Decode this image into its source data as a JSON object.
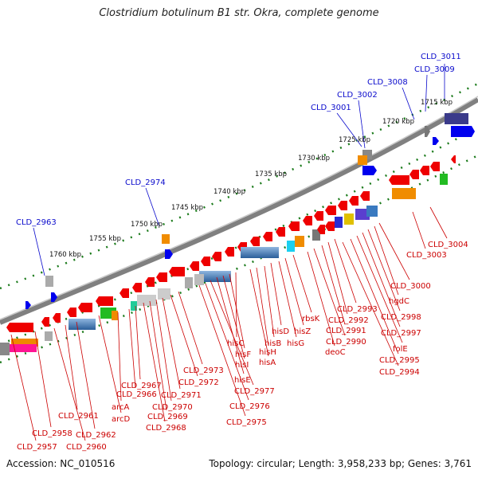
{
  "title": "Clostridium botulinum B1 str. Okra, complete genome",
  "footer": {
    "accession": "Accession: NC_010516",
    "topology": "Topology: circular; Length: 3,958,233 bp; Genes: 3,761"
  },
  "colors": {
    "backbone": "#808080",
    "ticks": "#1a7a1a",
    "top_labels": "#0a0acc",
    "bottom_labels": "#cc0000"
  },
  "scale_labels": [
    "1715 kbp",
    "1720 kbp",
    "1725 kbp",
    "1730 kbp",
    "1735 kbp",
    "1740 kbp",
    "1745 kbp",
    "1750 kbp",
    "1755 kbp",
    "1760 kbp"
  ],
  "top_labels": [
    "CLD_3011",
    "CLD_3009",
    "CLD_3008",
    "CLD_3002",
    "CLD_3001",
    "CLD_2974",
    "CLD_2963"
  ],
  "bottom_labels": [
    "CLD_3004",
    "CLD_3003",
    "CLD_3000",
    "hgdC",
    "CLD_2998",
    "CLD_2997",
    "folE",
    "CLD_2995",
    "CLD_2994",
    "CLD_2993",
    "CLD_2992",
    "CLD_2991",
    "CLD_2990",
    "deoC",
    "rbsK",
    "hisZ",
    "hisG",
    "hisD",
    "hisB",
    "hisH",
    "hisA",
    "hisC",
    "hisF",
    "hisI",
    "hisE",
    "CLD_2977",
    "CLD_2976",
    "CLD_2975",
    "CLD_2973",
    "CLD_2972",
    "CLD_2971",
    "CLD_2970",
    "CLD_2969",
    "CLD_2968",
    "CLD_2967",
    "CLD_2966",
    "arcA",
    "arcD",
    "CLD_2962",
    "CLD_2961",
    "CLD_2960",
    "CLD_2958",
    "CLD_2957"
  ]
}
